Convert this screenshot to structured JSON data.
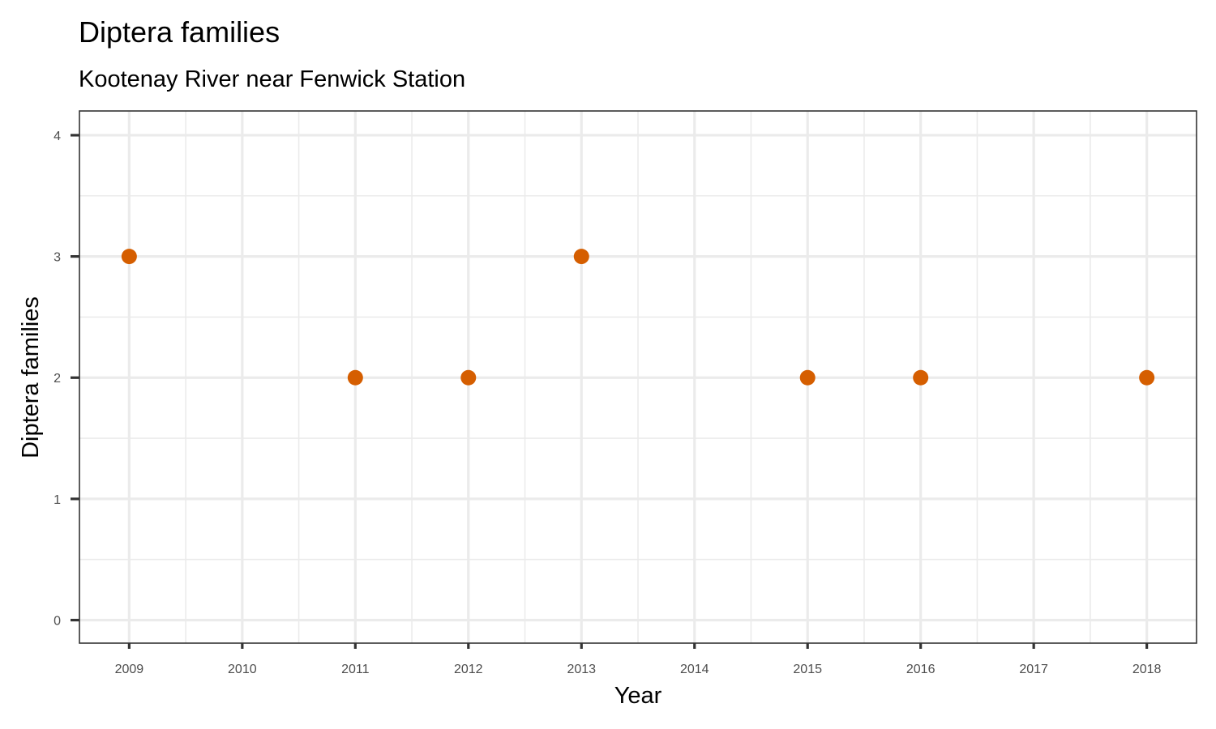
{
  "chart_data": {
    "type": "scatter",
    "title": "Diptera families",
    "subtitle": "Kootenay River near Fenwick Station",
    "xlabel": "Year",
    "ylabel": "Diptera families",
    "x_ticks": [
      "2009",
      "2010",
      "2011",
      "2012",
      "2013",
      "2014",
      "2015",
      "2016",
      "2017",
      "2018"
    ],
    "y_ticks": [
      "0",
      "1",
      "2",
      "3",
      "4"
    ],
    "xlim": [
      2008.56,
      2018.44
    ],
    "ylim": [
      -0.19,
      4.2
    ],
    "grid": true,
    "point_color": "#D55E00",
    "points": [
      {
        "x": 2009,
        "y": 3
      },
      {
        "x": 2011,
        "y": 2
      },
      {
        "x": 2012,
        "y": 2
      },
      {
        "x": 2013,
        "y": 3
      },
      {
        "x": 2015,
        "y": 2
      },
      {
        "x": 2016,
        "y": 2
      },
      {
        "x": 2018,
        "y": 2
      }
    ]
  }
}
